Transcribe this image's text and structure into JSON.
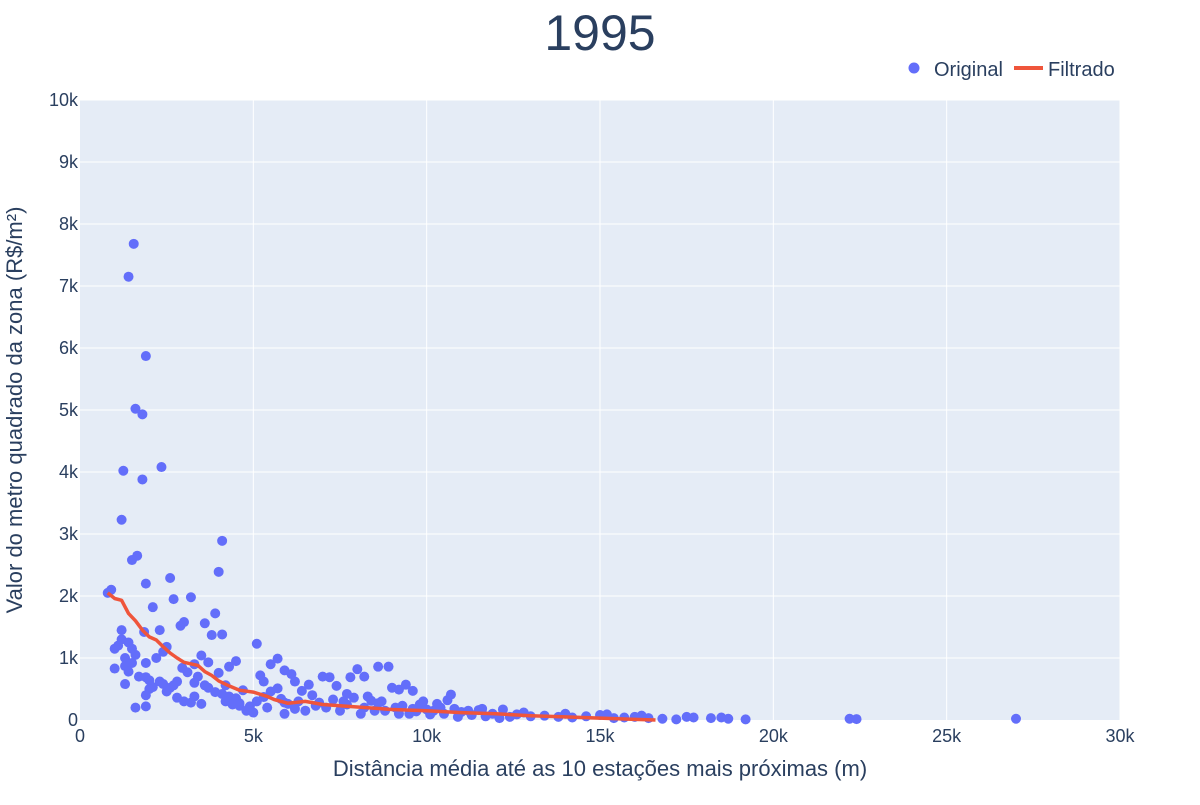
{
  "chart_data": {
    "type": "scatter",
    "title": "1995",
    "xlabel": "Distância média até as 10 estações mais próximas (m)",
    "ylabel": "Valor do metro quadrado da zona (R$/m²)",
    "xlim": [
      0,
      30000
    ],
    "ylim": [
      0,
      10000
    ],
    "x_ticks": [
      0,
      5000,
      10000,
      15000,
      20000,
      25000,
      30000
    ],
    "x_tick_labels": [
      "0",
      "5k",
      "10k",
      "15k",
      "20k",
      "25k",
      "30k"
    ],
    "y_ticks": [
      0,
      1000,
      2000,
      3000,
      4000,
      5000,
      6000,
      7000,
      8000,
      9000,
      10000
    ],
    "y_tick_labels": [
      "0",
      "1k",
      "2k",
      "3k",
      "4k",
      "5k",
      "6k",
      "7k",
      "8k",
      "9k",
      "10k"
    ],
    "grid": true,
    "legend_position": "top-right",
    "colors": {
      "original": "#636efa",
      "filtrado": "#ef553b",
      "plot_bg": "#e5ecf6",
      "text": "#2a3f5f"
    },
    "series": [
      {
        "name": "Original",
        "mode": "markers",
        "points": [
          [
            800,
            2050
          ],
          [
            900,
            2100
          ],
          [
            1000,
            1150
          ],
          [
            1100,
            1200
          ],
          [
            1000,
            830
          ],
          [
            1200,
            1300
          ],
          [
            1200,
            1450
          ],
          [
            1300,
            1000
          ],
          [
            1300,
            870
          ],
          [
            1400,
            1250
          ],
          [
            1400,
            780
          ],
          [
            1500,
            1150
          ],
          [
            1500,
            920
          ],
          [
            1600,
            1050
          ],
          [
            1300,
            580
          ],
          [
            1200,
            3230
          ],
          [
            1250,
            4020
          ],
          [
            1400,
            7150
          ],
          [
            1550,
            7680
          ],
          [
            1600,
            5020
          ],
          [
            1800,
            4930
          ],
          [
            1900,
            5870
          ],
          [
            2350,
            4080
          ],
          [
            1800,
            3880
          ],
          [
            1500,
            2580
          ],
          [
            1650,
            2650
          ],
          [
            1900,
            2200
          ],
          [
            2100,
            1820
          ],
          [
            2600,
            2290
          ],
          [
            2700,
            1950
          ],
          [
            2300,
            1450
          ],
          [
            1850,
            1420
          ],
          [
            2500,
            1180
          ],
          [
            2400,
            1100
          ],
          [
            2200,
            1000
          ],
          [
            1900,
            920
          ],
          [
            1700,
            700
          ],
          [
            1900,
            690
          ],
          [
            2000,
            640
          ],
          [
            2300,
            620
          ],
          [
            2100,
            530
          ],
          [
            2000,
            500
          ],
          [
            1900,
            400
          ],
          [
            1600,
            200
          ],
          [
            1900,
            220
          ],
          [
            2400,
            580
          ],
          [
            2500,
            460
          ],
          [
            2600,
            520
          ],
          [
            2700,
            560
          ],
          [
            2800,
            620
          ],
          [
            2900,
            1520
          ],
          [
            3000,
            1580
          ],
          [
            3200,
            1980
          ],
          [
            3500,
            1040
          ],
          [
            3700,
            930
          ],
          [
            3900,
            1720
          ],
          [
            3800,
            1370
          ],
          [
            4100,
            1380
          ],
          [
            4000,
            2390
          ],
          [
            4100,
            2890
          ],
          [
            3300,
            600
          ],
          [
            3400,
            700
          ],
          [
            3600,
            560
          ],
          [
            3700,
            520
          ],
          [
            3900,
            450
          ],
          [
            4100,
            420
          ],
          [
            4300,
            380
          ],
          [
            4500,
            350
          ],
          [
            4600,
            270
          ],
          [
            4200,
            300
          ],
          [
            4400,
            250
          ],
          [
            3300,
            380
          ],
          [
            3200,
            280
          ],
          [
            3500,
            260
          ],
          [
            3000,
            300
          ],
          [
            2800,
            360
          ],
          [
            4000,
            760
          ],
          [
            4300,
            860
          ],
          [
            4500,
            950
          ],
          [
            4600,
            230
          ],
          [
            4800,
            150
          ],
          [
            5000,
            120
          ],
          [
            5100,
            1230
          ],
          [
            5200,
            720
          ],
          [
            5300,
            620
          ],
          [
            5500,
            460
          ],
          [
            5700,
            510
          ],
          [
            5800,
            340
          ],
          [
            5500,
            900
          ],
          [
            5700,
            990
          ],
          [
            5900,
            800
          ],
          [
            6100,
            740
          ],
          [
            6200,
            620
          ],
          [
            6400,
            470
          ],
          [
            6600,
            570
          ],
          [
            6000,
            260
          ],
          [
            6200,
            180
          ],
          [
            6500,
            150
          ],
          [
            6800,
            230
          ],
          [
            7000,
            700
          ],
          [
            7200,
            690
          ],
          [
            7400,
            550
          ],
          [
            7700,
            420
          ],
          [
            7900,
            360
          ],
          [
            7800,
            690
          ],
          [
            8000,
            820
          ],
          [
            8200,
            700
          ],
          [
            8600,
            860
          ],
          [
            8900,
            860
          ],
          [
            9000,
            520
          ],
          [
            9200,
            490
          ],
          [
            9400,
            570
          ],
          [
            9600,
            470
          ],
          [
            8400,
            310
          ],
          [
            8600,
            270
          ],
          [
            8200,
            200
          ],
          [
            8800,
            150
          ],
          [
            9200,
            100
          ],
          [
            9600,
            180
          ],
          [
            9800,
            250
          ],
          [
            10000,
            170
          ],
          [
            10300,
            260
          ],
          [
            10600,
            320
          ],
          [
            10700,
            410
          ],
          [
            10800,
            180
          ],
          [
            11000,
            130
          ],
          [
            11200,
            150
          ],
          [
            11600,
            180
          ],
          [
            11900,
            100
          ],
          [
            12200,
            170
          ],
          [
            12600,
            90
          ],
          [
            13000,
            60
          ],
          [
            13400,
            70
          ],
          [
            13800,
            50
          ],
          [
            14200,
            40
          ],
          [
            14600,
            60
          ],
          [
            15000,
            80
          ],
          [
            15400,
            30
          ],
          [
            15700,
            40
          ],
          [
            16000,
            50
          ],
          [
            16400,
            30
          ],
          [
            16800,
            20
          ],
          [
            17200,
            10
          ],
          [
            17700,
            40
          ],
          [
            18200,
            30
          ],
          [
            18700,
            20
          ],
          [
            19200,
            10
          ],
          [
            22200,
            20
          ],
          [
            22400,
            15
          ],
          [
            27000,
            20
          ],
          [
            5100,
            300
          ],
          [
            5400,
            200
          ],
          [
            5900,
            100
          ],
          [
            6300,
            300
          ],
          [
            6700,
            400
          ],
          [
            7100,
            200
          ],
          [
            7500,
            150
          ],
          [
            7600,
            300
          ],
          [
            8100,
            100
          ],
          [
            8500,
            150
          ],
          [
            9100,
            200
          ],
          [
            9500,
            100
          ],
          [
            9900,
            300
          ],
          [
            10200,
            150
          ],
          [
            10500,
            100
          ],
          [
            10900,
            50
          ],
          [
            11300,
            80
          ],
          [
            11700,
            60
          ],
          [
            12100,
            30
          ],
          [
            12400,
            50
          ],
          [
            3600,
            1560
          ],
          [
            3100,
            770
          ],
          [
            3300,
            900
          ],
          [
            2950,
            840
          ],
          [
            4200,
            560
          ],
          [
            4700,
            480
          ],
          [
            4900,
            220
          ],
          [
            5300,
            370
          ],
          [
            5900,
            280
          ],
          [
            6900,
            280
          ],
          [
            7300,
            330
          ],
          [
            7700,
            250
          ],
          [
            8300,
            380
          ],
          [
            8700,
            300
          ],
          [
            9300,
            230
          ],
          [
            9700,
            140
          ],
          [
            10100,
            90
          ],
          [
            10400,
            200
          ],
          [
            11500,
            160
          ],
          [
            12800,
            120
          ],
          [
            14000,
            100
          ],
          [
            15200,
            90
          ],
          [
            16200,
            70
          ],
          [
            17500,
            50
          ],
          [
            18500,
            40
          ]
        ]
      },
      {
        "name": "Filtrado",
        "mode": "lines",
        "points": [
          [
            800,
            2050
          ],
          [
            1000,
            1960
          ],
          [
            1200,
            1930
          ],
          [
            1400,
            1720
          ],
          [
            1600,
            1600
          ],
          [
            1800,
            1450
          ],
          [
            2000,
            1340
          ],
          [
            2200,
            1290
          ],
          [
            2400,
            1180
          ],
          [
            2600,
            1080
          ],
          [
            2800,
            1000
          ],
          [
            3000,
            930
          ],
          [
            3400,
            880
          ],
          [
            3600,
            780
          ],
          [
            3800,
            720
          ],
          [
            4000,
            630
          ],
          [
            4300,
            550
          ],
          [
            4600,
            480
          ],
          [
            5000,
            450
          ],
          [
            5400,
            380
          ],
          [
            5600,
            330
          ],
          [
            6000,
            270
          ],
          [
            6500,
            300
          ],
          [
            7000,
            250
          ],
          [
            7500,
            230
          ],
          [
            8000,
            210
          ],
          [
            9000,
            170
          ],
          [
            10000,
            150
          ],
          [
            11000,
            120
          ],
          [
            12000,
            100
          ],
          [
            13000,
            70
          ],
          [
            14000,
            50
          ],
          [
            15000,
            30
          ],
          [
            16000,
            10
          ],
          [
            16600,
            0
          ]
        ]
      }
    ]
  }
}
